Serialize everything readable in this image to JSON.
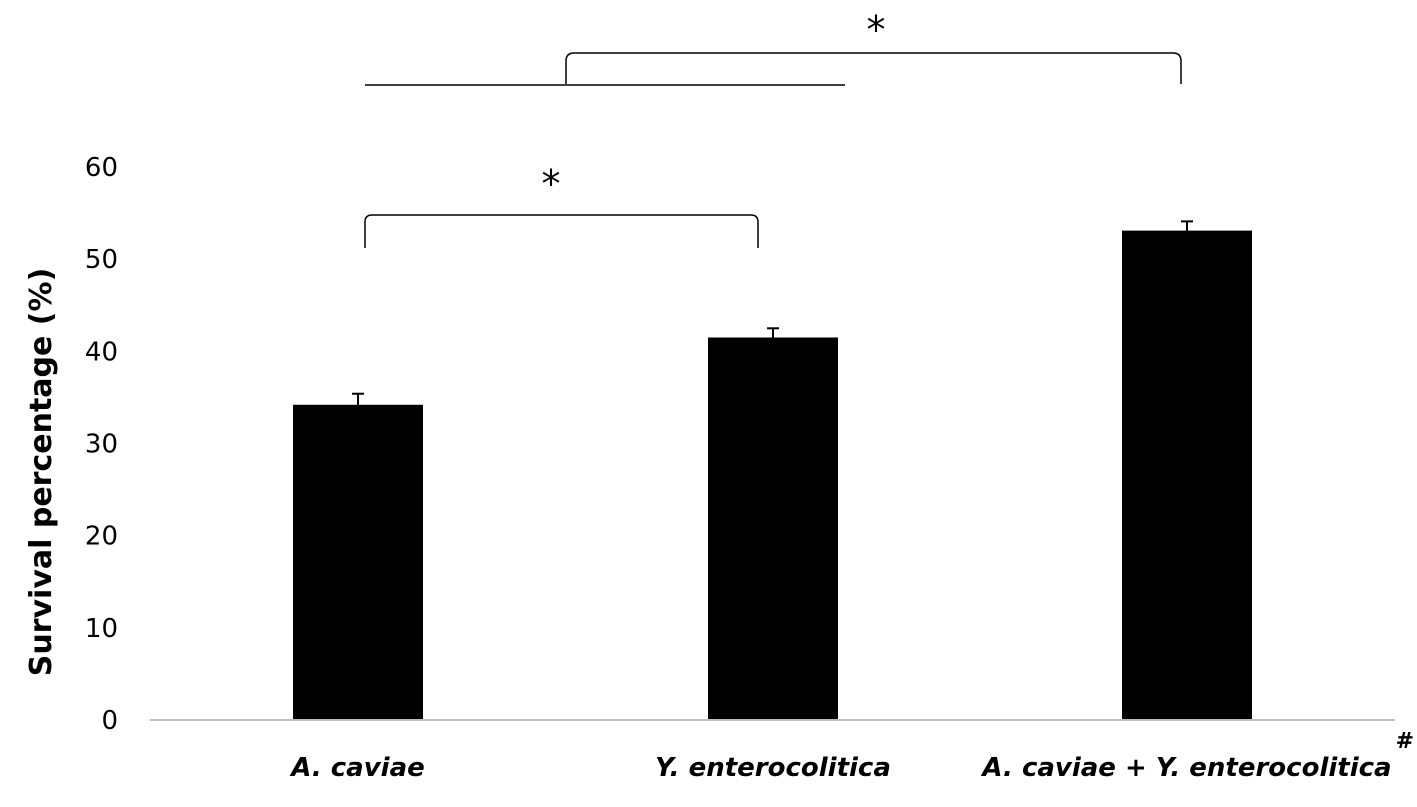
{
  "chart_data": {
    "type": "bar",
    "title": "",
    "xlabel": "",
    "ylabel": "Survival percentage (%)",
    "ylim": [
      0,
      60
    ],
    "yticks": [
      0,
      10,
      20,
      30,
      40,
      50,
      60
    ],
    "grid": false,
    "categories": [
      "A. caviae",
      "Y. enterocolitica",
      "A. caviae + Y. enterocolitica"
    ],
    "category_superscripts": [
      "",
      "",
      "#"
    ],
    "values": [
      34.2,
      41.5,
      53.1
    ],
    "errors": [
      1.2,
      1.0,
      1.0
    ],
    "bar_color": "#000000",
    "axis_color": "#bfbfbf",
    "annotations": [
      {
        "label": "*",
        "from_category": 0,
        "to_category": 1,
        "type": "bracket"
      },
      {
        "label": "*",
        "from_category": "A. caviae – Y. enterocolitica span",
        "to_category": 2,
        "type": "bracket-from-line"
      }
    ]
  }
}
